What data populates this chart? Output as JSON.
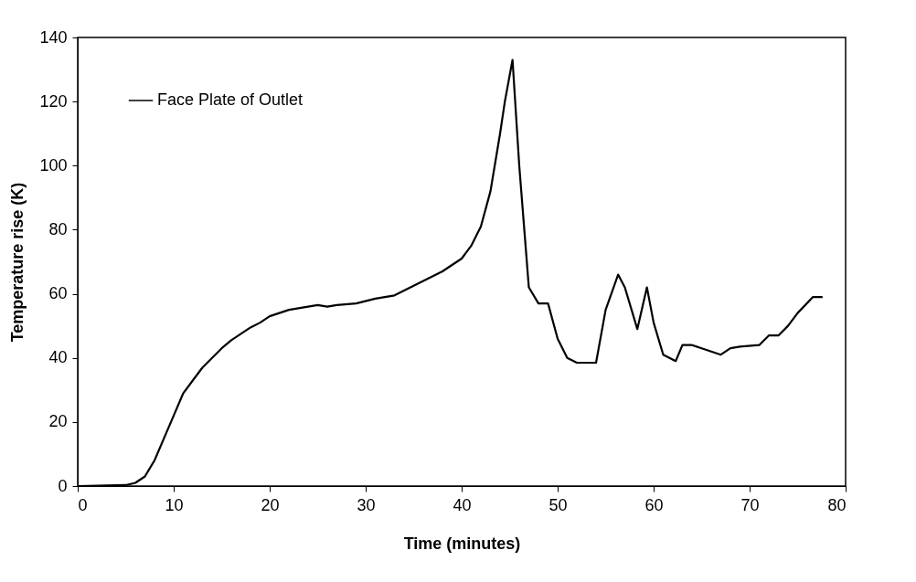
{
  "chart_data": {
    "type": "line",
    "xlabel": "Time (minutes)",
    "ylabel": "Temperature rise (K)",
    "xlim": [
      0,
      80
    ],
    "xticks": [
      0,
      10,
      20,
      30,
      40,
      50,
      60,
      70,
      80
    ],
    "ylim": [
      0,
      140
    ],
    "yticks": [
      0,
      20,
      40,
      60,
      80,
      100,
      120,
      140
    ],
    "grid": false,
    "legend": "top left",
    "marker": "none",
    "line_style": "solid",
    "series": [
      {
        "name": "Face Plate of Outlet",
        "color": "#000000",
        "x": [
          0,
          5,
          6,
          7,
          8,
          9,
          10,
          11,
          12,
          13,
          14,
          15,
          16,
          17,
          18,
          19,
          20,
          22,
          24,
          25,
          26,
          27,
          29,
          31,
          33,
          34,
          36,
          38,
          39,
          40,
          41,
          42,
          43,
          44,
          44.5,
          45.3,
          46,
          47,
          48,
          49,
          50,
          51,
          52,
          53,
          54,
          55,
          56.3,
          57,
          58.3,
          59.3,
          60,
          61,
          62.3,
          63,
          64,
          67,
          68,
          69,
          71,
          72,
          73,
          74,
          75,
          76.6,
          77.6
        ],
        "values": [
          0,
          0.3,
          1,
          3,
          8,
          15,
          22,
          29,
          33,
          37,
          40,
          43,
          45.5,
          47.5,
          49.5,
          51,
          53,
          55,
          56,
          56.5,
          56,
          56.5,
          57,
          58.5,
          59.5,
          61,
          64,
          67,
          69,
          71,
          75,
          81,
          92,
          110,
          120,
          133,
          100,
          62,
          57,
          57,
          46,
          40,
          38.5,
          38.5,
          38.5,
          55,
          66,
          62,
          49,
          62,
          51,
          41,
          39,
          44,
          44,
          41,
          43,
          43.5,
          44,
          47,
          47,
          50,
          54,
          59,
          59
        ]
      }
    ]
  }
}
